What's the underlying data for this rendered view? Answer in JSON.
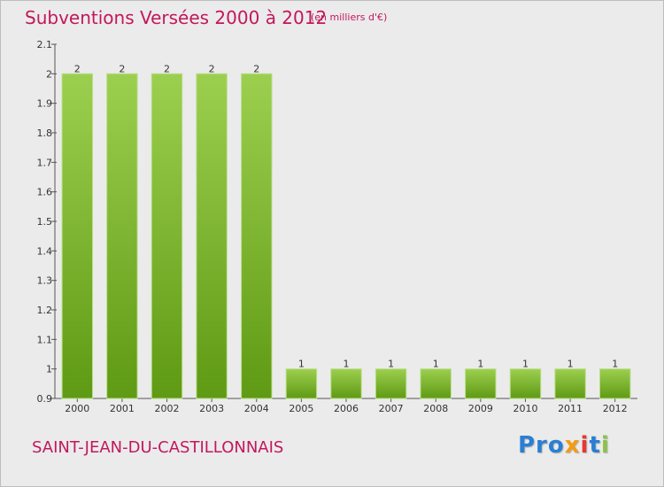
{
  "header": {
    "title": "Subventions Versées 2000 à 2012",
    "unit_note": "(en milliers d'€)"
  },
  "footer": {
    "commune": "SAINT-JEAN-DU-CASTILLONNAIS",
    "logo": [
      "Pro",
      "x",
      "i",
      "t",
      "i"
    ]
  },
  "colors": {
    "bar_top": "#9ccf4f",
    "bar_bottom": "#5f9a14",
    "title": "#c2185b",
    "background": "#ebebeb"
  },
  "chart_data": {
    "type": "bar",
    "title": "Subventions Versées 2000 à 2012",
    "subtitle": "(en milliers d'€)",
    "categories": [
      "2000",
      "2001",
      "2002",
      "2003",
      "2004",
      "2005",
      "2006",
      "2007",
      "2008",
      "2009",
      "2010",
      "2011",
      "2012"
    ],
    "values": [
      2,
      2,
      2,
      2,
      2,
      1,
      1,
      1,
      1,
      1,
      1,
      1,
      1
    ],
    "value_labels": [
      "2",
      "2",
      "2",
      "2",
      "2",
      "1",
      "1",
      "1",
      "1",
      "1",
      "1",
      "1",
      "1"
    ],
    "xlabel": "",
    "ylabel": "",
    "ylim": [
      0.9,
      2.1
    ],
    "yticks": [
      "0.9",
      "1",
      "1.1",
      "1.2",
      "1.3",
      "1.4",
      "1.5",
      "1.6",
      "1.7",
      "1.8",
      "1.9",
      "2",
      "2.1"
    ],
    "grid": false,
    "legend": "none"
  }
}
